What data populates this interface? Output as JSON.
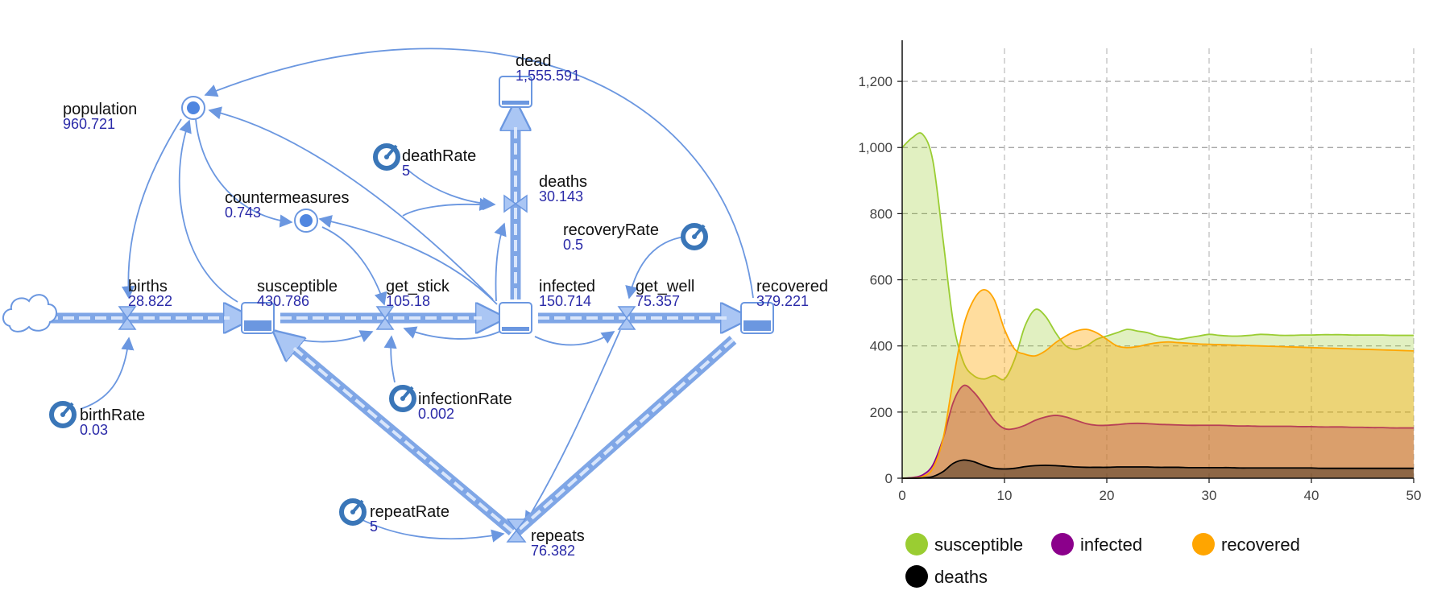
{
  "diagram": {
    "nodes": {
      "population": {
        "name": "population",
        "value": "960.721"
      },
      "births": {
        "name": "births",
        "value": "28.822"
      },
      "susceptible": {
        "name": "susceptible",
        "value": "430.786"
      },
      "countermeasures": {
        "name": "countermeasures",
        "value": "0.743"
      },
      "get_stick": {
        "name": "get_stick",
        "value": "105.18"
      },
      "infected": {
        "name": "infected",
        "value": "150.714"
      },
      "dead": {
        "name": "dead",
        "value": "1,555.591"
      },
      "deathRate": {
        "name": "deathRate",
        "value": "5"
      },
      "deaths": {
        "name": "deaths",
        "value": "30.143"
      },
      "recoveryRate": {
        "name": "recoveryRate",
        "value": "0.5"
      },
      "get_well": {
        "name": "get_well",
        "value": "75.357"
      },
      "recovered": {
        "name": "recovered",
        "value": "379.221"
      },
      "birthRate": {
        "name": "birthRate",
        "value": "0.03"
      },
      "infectionRate": {
        "name": "infectionRate",
        "value": "0.002"
      },
      "repeatRate": {
        "name": "repeatRate",
        "value": "5"
      },
      "repeats": {
        "name": "repeats",
        "value": "76.382"
      }
    },
    "colors": {
      "pipe": "#7fa6e6",
      "link": "#6b97e0",
      "value_text": "#2a2aa8"
    }
  },
  "chart_data": {
    "type": "area",
    "x": [
      0,
      1,
      2,
      3,
      4,
      5,
      6,
      7,
      8,
      9,
      10,
      11,
      12,
      13,
      14,
      15,
      16,
      17,
      18,
      19,
      20,
      21,
      22,
      23,
      24,
      25,
      26,
      27,
      28,
      29,
      30,
      31,
      32,
      33,
      34,
      35,
      36,
      37,
      38,
      39,
      40,
      41,
      42,
      43,
      44,
      45,
      46,
      47,
      48,
      49,
      50
    ],
    "series": [
      {
        "name": "susceptible",
        "color": "#9acd32",
        "values": [
          1000,
          1030,
          1040,
          960,
          720,
          470,
          350,
          310,
          300,
          310,
          300,
          360,
          460,
          510,
          490,
          440,
          400,
          390,
          400,
          420,
          430,
          440,
          450,
          445,
          440,
          430,
          425,
          420,
          425,
          430,
          435,
          432,
          430,
          430,
          432,
          435,
          434,
          432,
          432,
          433,
          433,
          434,
          434,
          434,
          433,
          433,
          433,
          433,
          432,
          432,
          432
        ]
      },
      {
        "name": "infected",
        "color": "#8b008b",
        "values": [
          0,
          2,
          10,
          40,
          120,
          230,
          280,
          260,
          220,
          175,
          150,
          150,
          160,
          175,
          185,
          190,
          185,
          175,
          165,
          160,
          160,
          162,
          165,
          166,
          165,
          163,
          162,
          161,
          160,
          160,
          160,
          160,
          159,
          158,
          158,
          157,
          157,
          157,
          157,
          156,
          156,
          155,
          155,
          155,
          154,
          154,
          153,
          153,
          152,
          152,
          152
        ]
      },
      {
        "name": "recovered",
        "color": "#ffa500",
        "values": [
          0,
          1,
          5,
          30,
          120,
          300,
          460,
          540,
          570,
          540,
          450,
          390,
          375,
          370,
          385,
          410,
          430,
          445,
          450,
          440,
          420,
          400,
          395,
          398,
          405,
          410,
          412,
          410,
          408,
          406,
          405,
          404,
          403,
          402,
          401,
          400,
          399,
          398,
          397,
          396,
          395,
          394,
          393,
          392,
          391,
          390,
          389,
          388,
          387,
          386,
          385
        ]
      },
      {
        "name": "deaths",
        "color": "#000000",
        "values": [
          0,
          0,
          1,
          5,
          20,
          45,
          55,
          50,
          38,
          30,
          28,
          30,
          35,
          38,
          39,
          38,
          36,
          34,
          33,
          33,
          33,
          34,
          34,
          34,
          34,
          33,
          33,
          33,
          32,
          32,
          32,
          32,
          32,
          31,
          31,
          31,
          31,
          31,
          31,
          31,
          31,
          30,
          30,
          30,
          30,
          30,
          30,
          30,
          30,
          30,
          30
        ]
      }
    ],
    "xlim": [
      0,
      50
    ],
    "ylim": [
      0,
      1300
    ],
    "x_ticks": [
      0,
      10,
      20,
      30,
      40,
      50
    ],
    "y_ticks": [
      0,
      200,
      400,
      600,
      800,
      1000,
      1200
    ],
    "y_tick_labels": [
      "0",
      "200",
      "400",
      "600",
      "800",
      "1,000",
      "1,200"
    ],
    "grid": true,
    "legend_position": "bottom"
  }
}
